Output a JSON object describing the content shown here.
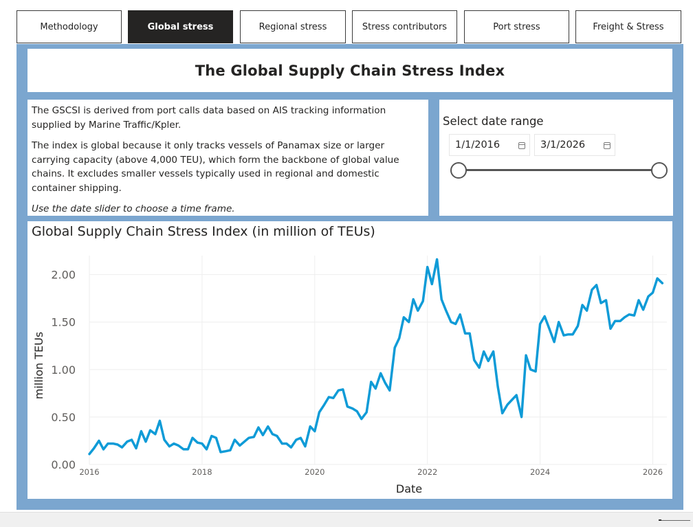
{
  "tabs": [
    {
      "label": "Methodology",
      "active": false
    },
    {
      "label": "Global stress",
      "active": true
    },
    {
      "label": "Regional stress",
      "active": false
    },
    {
      "label": "Stress contributors",
      "active": false
    },
    {
      "label": "Port stress",
      "active": false
    },
    {
      "label": "Freight & Stress",
      "active": false
    }
  ],
  "header": {
    "title": "The Global Supply Chain Stress Index"
  },
  "description": {
    "p1": "The GSCSI is derived from port calls data based on AIS tracking information supplied by Marine Traffic/Kpler.",
    "p2": "The index is global because it only tracks vessels of Panamax size or larger carrying capacity (above 4,000 TEU), which form the backbone of global value chains. It excludes smaller vessels typically used in regional and domestic container shipping.",
    "note": "Use the date slider to choose a time frame."
  },
  "date_range": {
    "label": "Select date range",
    "start": "1/1/2016",
    "end": "3/1/2026",
    "slider_start_fraction": 0.0,
    "slider_end_fraction": 1.0
  },
  "chart_data": {
    "type": "line",
    "title": "Global Supply Chain Stress Index (in million of TEUs)",
    "xlabel": "Date",
    "ylabel": "million TEUs",
    "xlim": [
      2016.0,
      2026.25
    ],
    "ylim": [
      0,
      2.2
    ],
    "x_ticks": [
      2016,
      2018,
      2020,
      2022,
      2024,
      2026
    ],
    "x_tick_labels": [
      "2016",
      "2018",
      "2020",
      "2022",
      "2024",
      "2026"
    ],
    "y_ticks": [
      0,
      0.5,
      1.0,
      1.5,
      2.0
    ],
    "y_tick_labels": [
      "0.00",
      "0.50",
      "1.00",
      "1.50",
      "2.00"
    ],
    "grid": true,
    "line_color": "#0f9bd7",
    "series": [
      {
        "x": [
          2016.0,
          2016.08,
          2016.17,
          2016.25,
          2016.33,
          2016.42,
          2016.5,
          2016.58,
          2016.67,
          2016.75,
          2016.83,
          2016.92,
          2017.0,
          2017.08,
          2017.17,
          2017.25,
          2017.33,
          2017.42,
          2017.5,
          2017.58,
          2017.67,
          2017.75,
          2017.83,
          2017.92,
          2018.0,
          2018.08,
          2018.17,
          2018.25,
          2018.33,
          2018.42,
          2018.5,
          2018.58,
          2018.67,
          2018.75,
          2018.83,
          2018.92,
          2019.0,
          2019.08,
          2019.17,
          2019.25,
          2019.33,
          2019.42,
          2019.5,
          2019.58,
          2019.67,
          2019.75,
          2019.83,
          2019.92,
          2020.0,
          2020.08,
          2020.17,
          2020.25,
          2020.33,
          2020.42,
          2020.5,
          2020.58,
          2020.67,
          2020.75,
          2020.83,
          2020.92,
          2021.0,
          2021.08,
          2021.17,
          2021.25,
          2021.33,
          2021.42,
          2021.5,
          2021.58,
          2021.67,
          2021.75,
          2021.83,
          2021.92,
          2022.0,
          2022.08,
          2022.17,
          2022.25,
          2022.33,
          2022.42,
          2022.5,
          2022.58,
          2022.67,
          2022.75,
          2022.83,
          2022.92,
          2023.0,
          2023.08,
          2023.17,
          2023.25,
          2023.33,
          2023.42,
          2023.5,
          2023.58,
          2023.67,
          2023.75,
          2023.83,
          2023.92,
          2024.0,
          2024.08,
          2024.17,
          2024.25,
          2024.33,
          2024.42,
          2024.5,
          2024.58,
          2024.67,
          2024.75,
          2024.83,
          2024.92,
          2025.0,
          2025.08,
          2025.17,
          2025.25,
          2025.33,
          2025.42,
          2025.5,
          2025.58,
          2025.67,
          2025.75,
          2025.83,
          2025.92,
          2026.0,
          2026.08,
          2026.17
        ],
        "values": [
          0.11,
          0.17,
          0.25,
          0.16,
          0.22,
          0.22,
          0.21,
          0.18,
          0.24,
          0.26,
          0.17,
          0.35,
          0.24,
          0.36,
          0.32,
          0.46,
          0.26,
          0.19,
          0.22,
          0.2,
          0.16,
          0.16,
          0.28,
          0.23,
          0.22,
          0.16,
          0.3,
          0.28,
          0.13,
          0.14,
          0.15,
          0.26,
          0.2,
          0.24,
          0.28,
          0.29,
          0.39,
          0.31,
          0.4,
          0.32,
          0.3,
          0.22,
          0.22,
          0.18,
          0.26,
          0.28,
          0.19,
          0.4,
          0.35,
          0.55,
          0.63,
          0.71,
          0.7,
          0.78,
          0.79,
          0.61,
          0.59,
          0.56,
          0.48,
          0.55,
          0.87,
          0.8,
          0.96,
          0.86,
          0.78,
          1.23,
          1.33,
          1.55,
          1.5,
          1.74,
          1.62,
          1.72,
          2.08,
          1.9,
          2.16,
          1.74,
          1.62,
          1.5,
          1.48,
          1.58,
          1.38,
          1.38,
          1.1,
          1.02,
          1.19,
          1.09,
          1.19,
          0.82,
          0.54,
          0.63,
          0.68,
          0.73,
          0.5,
          1.15,
          1.0,
          0.98,
          1.48,
          1.56,
          1.42,
          1.29,
          1.5,
          1.36,
          1.37,
          1.37,
          1.46,
          1.68,
          1.62,
          1.84,
          1.89,
          1.7,
          1.73,
          1.43,
          1.51,
          1.51,
          1.55,
          1.58,
          1.57,
          1.73,
          1.63,
          1.77,
          1.81,
          1.96,
          1.91
        ]
      }
    ]
  }
}
